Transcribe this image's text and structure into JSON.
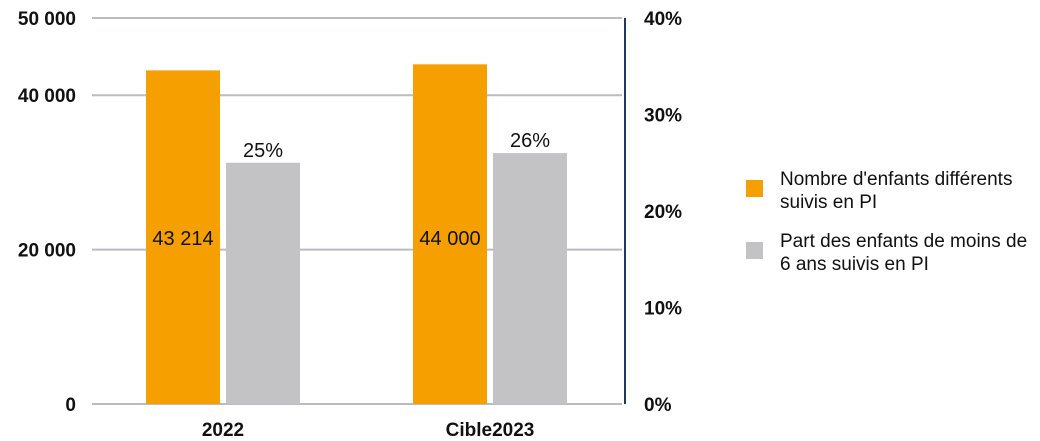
{
  "chart_data": {
    "type": "bar",
    "categories": [
      "2022",
      "Cible2023"
    ],
    "series": [
      {
        "name": "Nombre d'enfants différents suivis en PI",
        "axis": "left",
        "color": "#F5A000",
        "values": [
          43214,
          44000
        ],
        "labels": [
          "43 214",
          "44 000"
        ]
      },
      {
        "name": "Part des enfants de moins de 6 ans suivis en PI",
        "axis": "right",
        "color": "#C3C3C6",
        "values": [
          25,
          26
        ],
        "labels": [
          "25%",
          "26%"
        ]
      }
    ],
    "y_left": {
      "ylim": [
        0,
        50000
      ],
      "ticks": [
        0,
        20000,
        40000,
        50000
      ],
      "tick_labels": [
        "0",
        "20 000",
        "40 000",
        "50 000"
      ]
    },
    "y_right": {
      "ylim": [
        0,
        40
      ],
      "ticks": [
        0,
        10,
        20,
        30,
        40
      ],
      "tick_labels": [
        "0%",
        "10%",
        "20%",
        "30%",
        "40%"
      ]
    },
    "grid": true,
    "legend_position": "right"
  }
}
